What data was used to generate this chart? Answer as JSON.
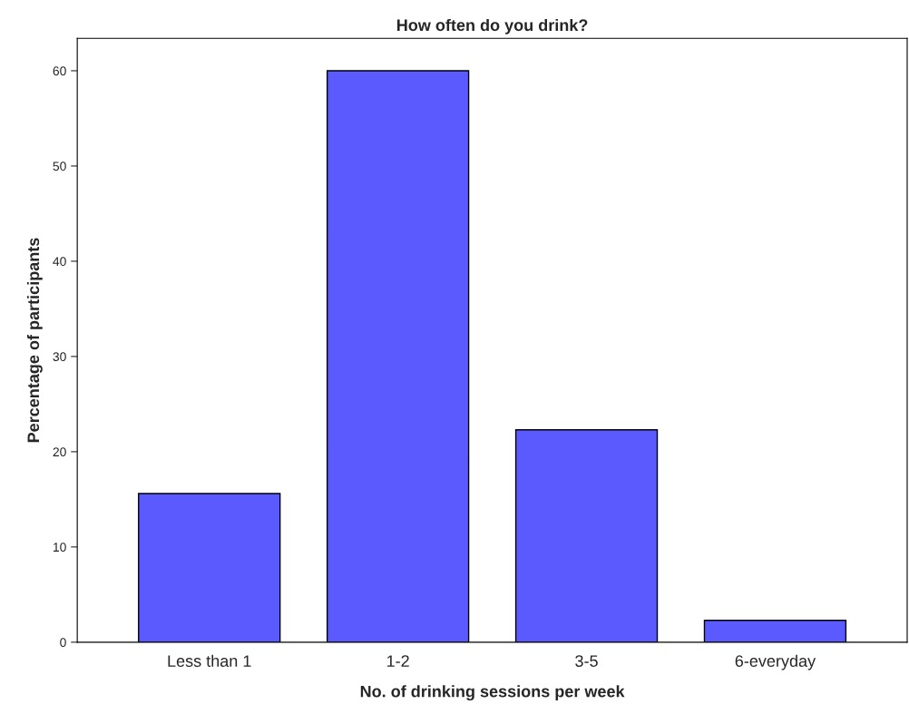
{
  "chart_data": {
    "type": "bar",
    "title": "How often do you drink?",
    "xlabel": "No. of drinking sessions per week",
    "ylabel": "Percentage of participants",
    "categories": [
      "Less than 1",
      "1-2",
      "3-5",
      "6-everyday"
    ],
    "values": [
      15.6,
      60,
      22.3,
      2.3
    ],
    "color": "#5a5aff",
    "ylim": [
      0,
      63.4
    ],
    "yticks": [
      0,
      10,
      20,
      30,
      40,
      50,
      60
    ],
    "grid": false
  }
}
